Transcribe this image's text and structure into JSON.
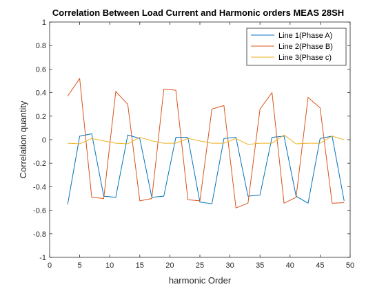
{
  "chart_data": {
    "type": "line",
    "title": "Correlation Between Load Current and Harmonic orders MEAS 28SH",
    "xlabel": "harmonic Order",
    "ylabel": "Correlation quantity",
    "xlim": [
      0,
      50
    ],
    "ylim": [
      -1,
      1
    ],
    "xticks": [
      0,
      5,
      10,
      15,
      20,
      25,
      30,
      35,
      40,
      45,
      50
    ],
    "yticks": [
      -1,
      -0.8,
      -0.6,
      -0.4,
      -0.2,
      0,
      0.2,
      0.4,
      0.6,
      0.8,
      1
    ],
    "xtick_labels": [
      "0",
      "5",
      "10",
      "15",
      "20",
      "25",
      "30",
      "35",
      "40",
      "45",
      "50"
    ],
    "ytick_labels": [
      "-1",
      "-0.8",
      "-0.6",
      "-0.4",
      "-0.2",
      "0",
      "0.2",
      "0.4",
      "0.6",
      "0.8",
      "1"
    ],
    "grid": false,
    "legend_position": "top-right",
    "x": [
      3,
      5,
      7,
      9,
      11,
      13,
      15,
      17,
      19,
      21,
      23,
      25,
      27,
      29,
      31,
      33,
      35,
      37,
      39,
      41,
      43,
      45,
      47,
      49
    ],
    "series": [
      {
        "name": "Line 1(Phase A)",
        "color": "#0072BD",
        "values": [
          -0.55,
          0.03,
          0.05,
          -0.48,
          -0.49,
          0.04,
          0.01,
          -0.49,
          -0.48,
          0.02,
          0.02,
          -0.53,
          -0.545,
          0.01,
          0.02,
          -0.48,
          -0.47,
          0.02,
          0.03,
          -0.48,
          -0.54,
          0.01,
          0.03,
          -0.52
        ]
      },
      {
        "name": "Line 2(Phase B)",
        "color": "#D95319",
        "values": [
          0.37,
          0.52,
          -0.49,
          -0.5,
          0.41,
          0.3,
          -0.52,
          -0.5,
          0.43,
          0.42,
          -0.51,
          -0.52,
          0.26,
          0.29,
          -0.58,
          -0.54,
          0.26,
          0.4,
          -0.54,
          -0.49,
          0.36,
          0.27,
          -0.54,
          -0.535
        ]
      },
      {
        "name": "Line 3(Phase c)",
        "color": "#EDB120",
        "values": [
          -0.03,
          -0.035,
          0.01,
          -0.01,
          -0.03,
          -0.035,
          0.02,
          -0.01,
          -0.03,
          -0.03,
          0.01,
          -0.01,
          -0.03,
          -0.03,
          0.01,
          -0.04,
          -0.03,
          -0.03,
          0.04,
          -0.035,
          -0.03,
          -0.03,
          0.03,
          0.0
        ]
      }
    ]
  }
}
